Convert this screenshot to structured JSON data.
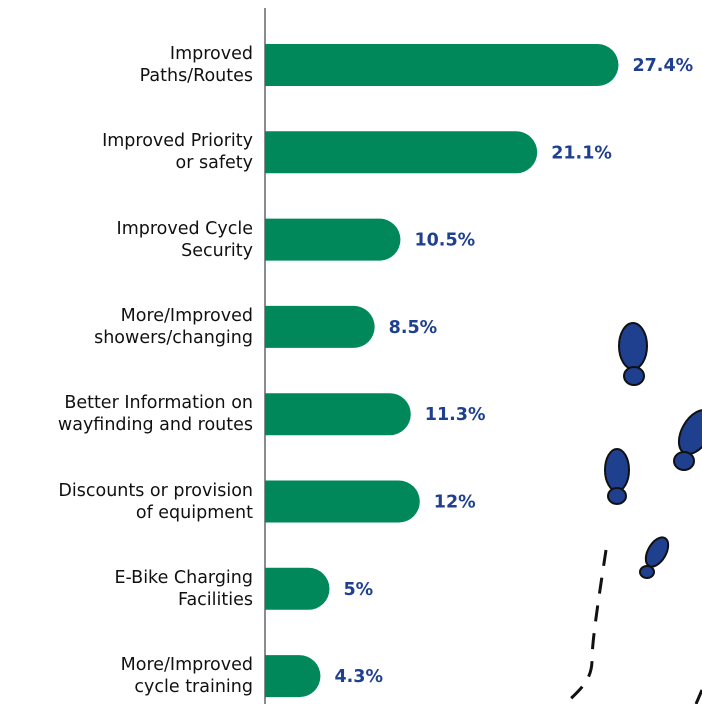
{
  "chart_data": {
    "type": "hbar",
    "categories": [
      "Improved\nPaths/Routes",
      "Improved Priority\nor safety",
      "Improved Cycle\nSecurity",
      "More/Improved\nshowers/changing",
      "Better Information on\nwayfinding and routes",
      "Discounts or provision\nof equipment",
      "E-Bike Charging\nFacilities",
      "More/Improved\ncycle training"
    ],
    "values": [
      27.4,
      21.1,
      10.5,
      8.5,
      11.3,
      12,
      5,
      4.3
    ],
    "value_labels": [
      "27.4%",
      "21.1%",
      "10.5%",
      "8.5%",
      "11.3%",
      "12%",
      "5%",
      "4.3%"
    ],
    "color": "#00875a",
    "label_color": "#1f3f8f"
  }
}
